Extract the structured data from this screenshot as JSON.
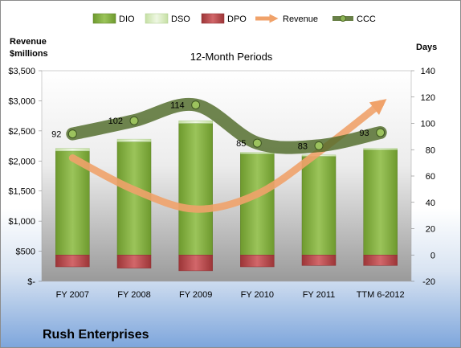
{
  "chart_data": {
    "type": "bar",
    "title": "12-Month Periods",
    "company": "Rush Enterprises",
    "y_left_title_line1": "Revenue",
    "y_left_title_line2": "$millions",
    "y_right_title": "Days",
    "categories": [
      "FY 2007",
      "FY 2008",
      "FY 2009",
      "FY 2010",
      "FY 2011",
      "TTM 6-2012"
    ],
    "y_left_ticks": [
      "$-",
      "$500",
      "$1,000",
      "$1,500",
      "$2,000",
      "$2,500",
      "$3,000",
      "$3,500"
    ],
    "y_left_range": [
      0,
      3500
    ],
    "y_right_ticks": [
      "-20",
      "0",
      "20",
      "40",
      "60",
      "80",
      "100",
      "120",
      "140"
    ],
    "y_right_range": [
      -20,
      140
    ],
    "series": [
      {
        "name": "DIO",
        "axis": "days",
        "kind": "stacked-bar",
        "color": "#7fa33a",
        "values": [
          79,
          86,
          100,
          77,
          75,
          80
        ]
      },
      {
        "name": "DSO",
        "axis": "days",
        "kind": "stacked-bar",
        "color": "#dcefc3",
        "values": [
          2,
          2,
          2,
          1,
          1,
          1
        ]
      },
      {
        "name": "DPO",
        "axis": "days",
        "kind": "bar-negative",
        "color": "#b8474a",
        "values": [
          -9,
          -10,
          -12,
          -9,
          -8,
          -8
        ]
      },
      {
        "name": "Revenue",
        "axis": "revenue",
        "kind": "line",
        "color": "#f0a26a",
        "values": [
          2050,
          1520,
          1200,
          1450,
          2150,
          2950
        ]
      },
      {
        "name": "CCC",
        "axis": "days",
        "kind": "line",
        "color": "#4f6a28",
        "values": [
          92,
          102,
          114,
          85,
          83,
          93
        ]
      }
    ],
    "data_labels": [
      "92",
      "102",
      "114",
      "85",
      "83",
      "93"
    ],
    "grid": false,
    "legend_position": "top"
  }
}
